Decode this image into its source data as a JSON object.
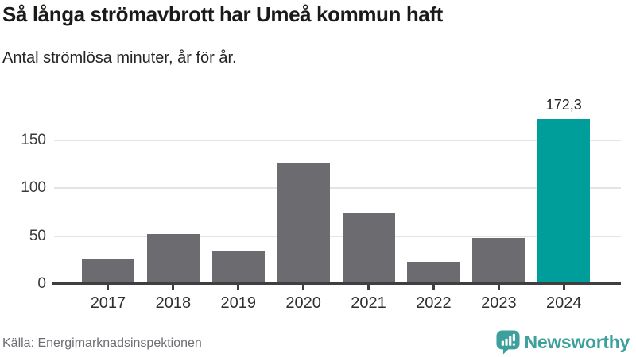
{
  "header": {
    "title": "Så långa strömavbrott har Umeå kommun haft",
    "subtitle": "Antal strömlösa minuter, år för år."
  },
  "footer": {
    "source": "Källa: Energimarknadsinspektionen",
    "branding": {
      "name": "Newsworthy",
      "logo_icon": "bar-chart-speech-bubble-icon",
      "logo_color": "#3ea09c"
    }
  },
  "colors": {
    "bar_default": "#6b6b70",
    "bar_highlight": "#009e9a",
    "gridline": "#e4e4e4",
    "axis": "#3f3f42",
    "text": "#1a1a18",
    "muted_text": "#6d6d73"
  },
  "chart_data": {
    "type": "bar",
    "title": "",
    "xlabel": "",
    "ylabel": "Antal strömlösa minuter",
    "categories": [
      "2017",
      "2018",
      "2019",
      "2020",
      "2021",
      "2022",
      "2023",
      "2024"
    ],
    "values": [
      26,
      52,
      35,
      127,
      74,
      23,
      48,
      172.3
    ],
    "highlighted_category": "2024",
    "data_labels": {
      "2024": "172,3"
    },
    "yticks": [
      0,
      50,
      100,
      150
    ],
    "ylim": [
      0,
      180
    ],
    "grid": true,
    "legend": false,
    "bar_color": "#6b6b70",
    "highlight_color": "#009e9a"
  }
}
